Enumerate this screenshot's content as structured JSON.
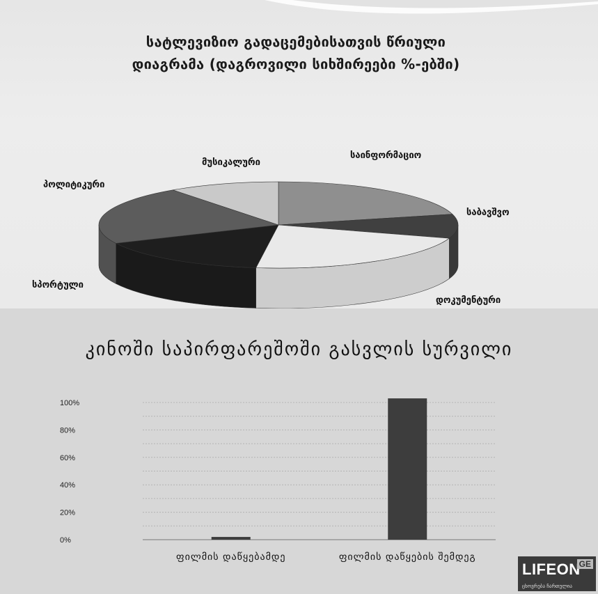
{
  "chart_data": [
    {
      "type": "pie",
      "title_line1": "სატლევიზიო გადაცემებისათვის წრიული",
      "title_line2": "დიაგრამა (დაგროვილი სიხშირეები %-ებში)",
      "categories": [
        "საინფორმაციო",
        "საბავშვო",
        "დოკუმენტური",
        "სპორტული",
        "პოლიტიკური",
        "მუსიკალური"
      ],
      "values": [
        21,
        9,
        22,
        16,
        22,
        10
      ],
      "colors": [
        "#8f8f8f",
        "#404040",
        "#e9e9e9",
        "#1e1e1e",
        "#5c5c5c",
        "#c9c9c9"
      ]
    },
    {
      "type": "bar",
      "title": "კინოში საპირფარეშოში გასვლის სურვილი",
      "categories": [
        "ფილმის დაწყებამდე",
        "ფილმის დაწყების შემდეგ"
      ],
      "values": [
        2,
        103
      ],
      "ylim": [
        0,
        100
      ],
      "yticks": [
        "0%",
        "20%",
        "40%",
        "60%",
        "80%",
        "100%"
      ],
      "grid": true,
      "bar_color": "#3d3d3d"
    }
  ],
  "logo": {
    "text": "LIFEON",
    "badge": "GE",
    "tagline": "ცხოვრება ჩართულია"
  }
}
